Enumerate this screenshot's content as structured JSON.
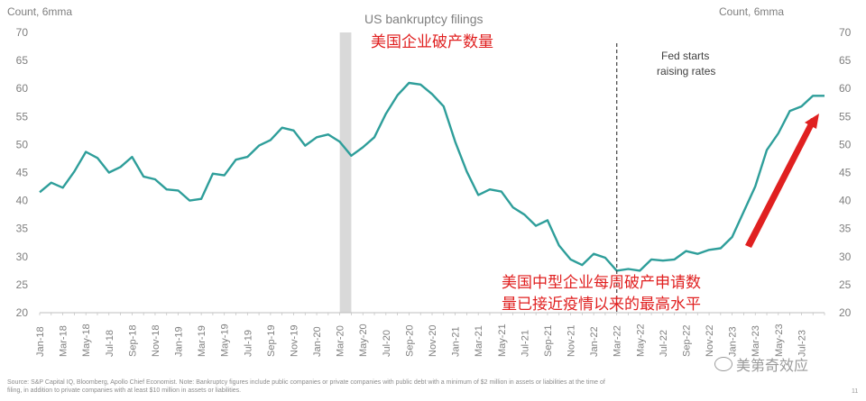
{
  "chart_data": {
    "type": "line",
    "title": "US bankruptcy filings",
    "ylabel_left": "Count, 6mma",
    "ylabel_right": "Count, 6mma",
    "ylim": [
      20,
      70
    ],
    "yticks": [
      20,
      25,
      30,
      35,
      40,
      45,
      50,
      55,
      60,
      65,
      70
    ],
    "x_start": "2018-01",
    "x_tick_labels": [
      "Jan-18",
      "Mar-18",
      "May-18",
      "Jul-18",
      "Sep-18",
      "Nov-18",
      "Jan-19",
      "Mar-19",
      "May-19",
      "Jul-19",
      "Sep-19",
      "Nov-19",
      "Jan-20",
      "Mar-20",
      "May-20",
      "Jul-20",
      "Sep-20",
      "Nov-20",
      "Jan-21",
      "Mar-21",
      "May-21",
      "Jul-21",
      "Sep-21",
      "Nov-21",
      "Jan-22",
      "Mar-22",
      "May-22",
      "Jul-22",
      "Sep-22",
      "Nov-22",
      "Jan-23",
      "Mar-23",
      "May-23",
      "Jul-23"
    ],
    "series": [
      {
        "color": "#2e9e9a",
        "values": [
          41.5,
          43.2,
          42.3,
          45.2,
          48.7,
          47.6,
          45.0,
          46.0,
          47.8,
          44.3,
          43.8,
          42.0,
          41.8,
          40.0,
          40.3,
          44.8,
          44.5,
          47.3,
          47.8,
          49.8,
          50.8,
          53.0,
          52.5,
          49.8,
          51.3,
          51.8,
          50.5,
          48.0,
          49.5,
          51.3,
          55.5,
          58.8,
          61.0,
          60.7,
          59.0,
          56.8,
          50.5,
          45.2,
          41.0,
          42.0,
          41.6,
          38.8,
          37.5,
          35.5,
          36.5,
          32.0,
          29.5,
          28.5,
          30.5,
          29.8,
          27.5,
          27.8,
          27.5,
          29.5,
          29.3,
          29.5,
          31.0,
          30.5,
          31.2,
          31.5,
          33.5,
          38.0,
          42.5,
          49.0,
          52.0,
          56.0,
          56.8,
          58.7,
          58.7
        ]
      }
    ],
    "shaded_region": {
      "start": "2020-03",
      "end": "2020-04",
      "color": "#d9d9d9"
    },
    "vline": {
      "at": "2022-03",
      "label_line1": "Fed starts",
      "label_line2": "raising rates"
    },
    "annotation_arrow_color": "#e02020",
    "grid": false,
    "legend": "none"
  },
  "annotations": {
    "cn_title": "美国企业破产数量",
    "cn_note_line1": "美国中型企业每周破产申请数",
    "cn_note_line2": "量已接近疫情以来的最高水平"
  },
  "footnote": {
    "line1": "Source: S&P Capital IQ, Bloomberg, Apollo Chief Economist. Note: Bankruptcy figures include public companies or private companies with public debt with a minimum of $2 million in assets or liabilities at the time of",
    "line2": "filing, in addition to private companies with at least $10 million in assets or liabilities."
  },
  "watermark": {
    "text": "美第奇效应",
    "icon": "wechat-icon"
  },
  "page_number": "11"
}
